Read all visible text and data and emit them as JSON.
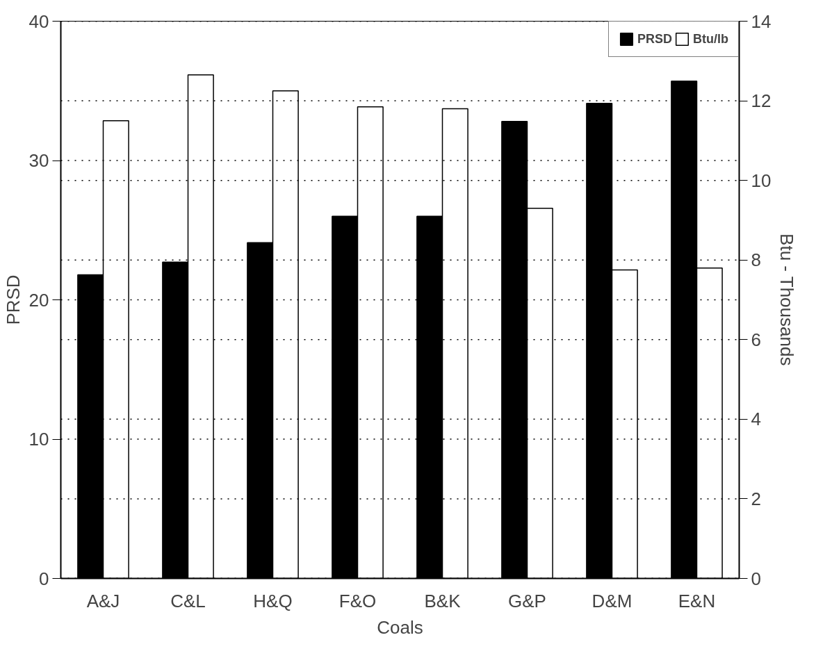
{
  "chart_data": {
    "type": "bar",
    "xlabel": "Coals",
    "ylabel": "PRSD",
    "y2label": "Btu - Thousands",
    "categories": [
      "A&J",
      "C&L",
      "H&Q",
      "F&O",
      "B&K",
      "G&P",
      "D&M",
      "E&N"
    ],
    "series": [
      {
        "name": "PRSD",
        "color": "#000000",
        "values": [
          21.8,
          22.7,
          24.1,
          26.0,
          26.0,
          32.8,
          34.1,
          35.7
        ]
      },
      {
        "name": "Btu/lb",
        "color": "#ffffff",
        "axis": "y2",
        "values": [
          11.5,
          12.65,
          12.25,
          11.85,
          11.8,
          9.3,
          7.75,
          7.8
        ]
      }
    ],
    "ylim": [
      0,
      40
    ],
    "yticks": [
      0,
      10,
      20,
      30,
      40
    ],
    "y2lim": [
      0,
      14
    ],
    "y2ticks": [
      0,
      2,
      4,
      6,
      8,
      10,
      12,
      14
    ],
    "grid": "y",
    "legend": "top right"
  }
}
